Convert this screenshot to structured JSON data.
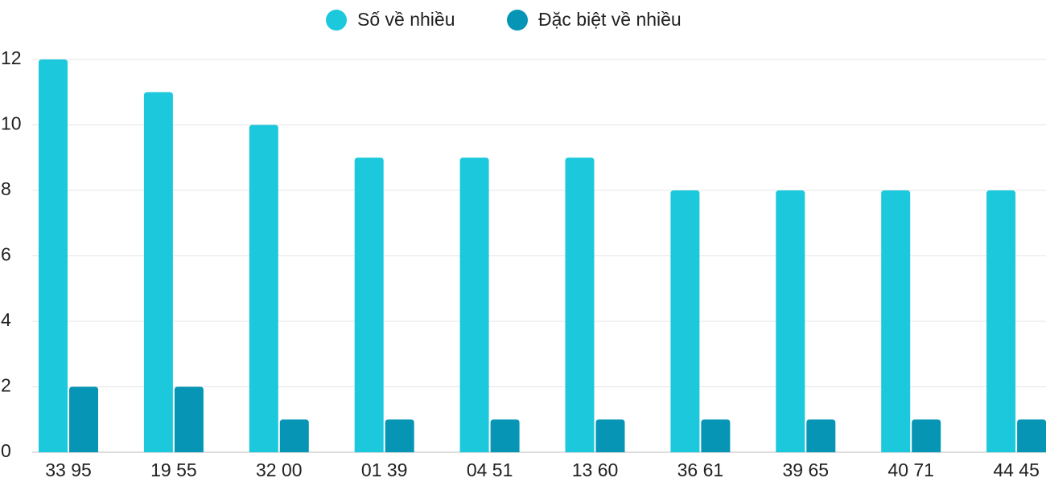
{
  "chart_data": {
    "type": "bar",
    "categories": [
      "33 95",
      "19 55",
      "32 00",
      "01 39",
      "04 51",
      "13 60",
      "36 61",
      "39 65",
      "40 71",
      "44 45"
    ],
    "series": [
      {
        "name": "Số về nhiều",
        "color": "#1bc8dc",
        "values": [
          12,
          11,
          10,
          9,
          9,
          9,
          8,
          8,
          8,
          8
        ]
      },
      {
        "name": "Đặc biệt về nhiều",
        "color": "#0795b6",
        "values": [
          2,
          2,
          1,
          1,
          1,
          1,
          1,
          1,
          1,
          1
        ]
      }
    ],
    "ylim": [
      0,
      12
    ],
    "yticks": [
      0,
      2,
      4,
      6,
      8,
      10,
      12
    ],
    "grid": true
  }
}
